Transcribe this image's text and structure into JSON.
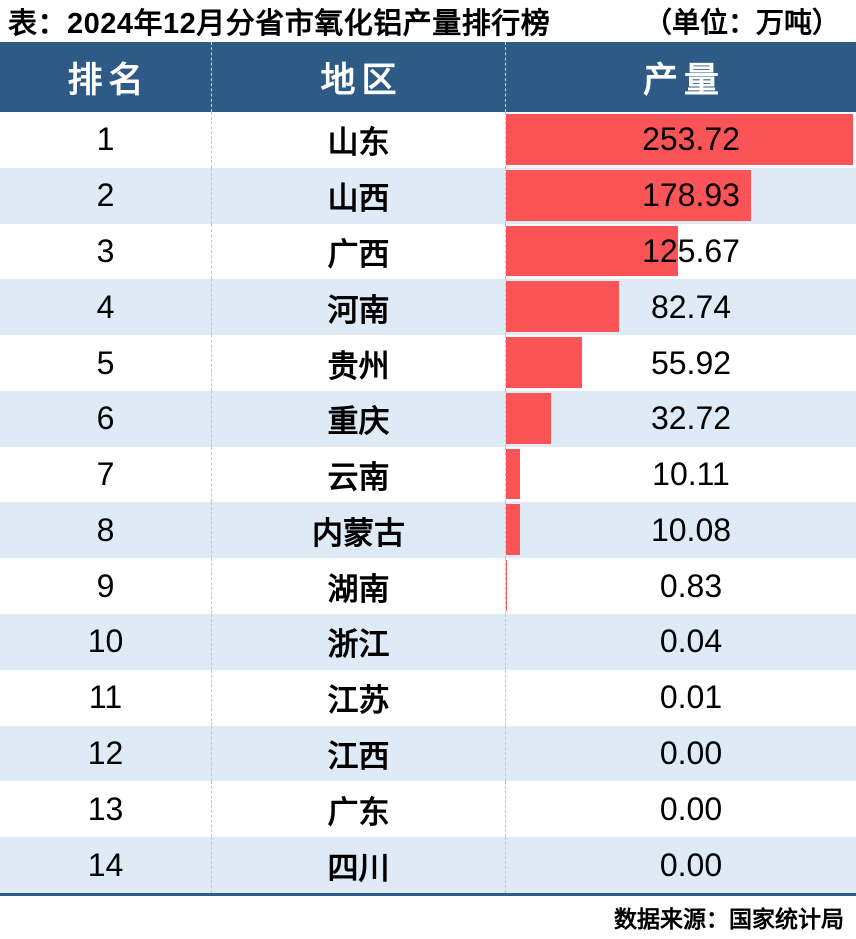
{
  "title": {
    "text": "表：2024年12月分省市氧化铝产量排行榜",
    "unit": "（单位：万吨）"
  },
  "table": {
    "columns": [
      "排名",
      "地区",
      "产量"
    ],
    "rows": [
      {
        "rank": "1",
        "region": "山东",
        "value": "253.72"
      },
      {
        "rank": "2",
        "region": "山西",
        "value": "178.93"
      },
      {
        "rank": "3",
        "region": "广西",
        "value": "125.67"
      },
      {
        "rank": "4",
        "region": "河南",
        "value": "82.74"
      },
      {
        "rank": "5",
        "region": "贵州",
        "value": "55.92"
      },
      {
        "rank": "6",
        "region": "重庆",
        "value": "32.72"
      },
      {
        "rank": "7",
        "region": "云南",
        "value": "10.11"
      },
      {
        "rank": "8",
        "region": "内蒙古",
        "value": "10.08"
      },
      {
        "rank": "9",
        "region": "湖南",
        "value": "0.83"
      },
      {
        "rank": "10",
        "region": "浙江",
        "value": "0.04"
      },
      {
        "rank": "11",
        "region": "江苏",
        "value": "0.01"
      },
      {
        "rank": "12",
        "region": "江西",
        "value": "0.00"
      },
      {
        "rank": "13",
        "region": "广东",
        "value": "0.00"
      },
      {
        "rank": "14",
        "region": "四川",
        "value": "0.00"
      }
    ]
  },
  "footer": {
    "source": "数据来源：国家统计局"
  },
  "colors": {
    "header_bg": "#2E5A86",
    "alt_row_bg": "#DEEBF7",
    "bar": "#FB5456",
    "bottom_border": "#2E5A86"
  },
  "chart_data": {
    "type": "bar",
    "orientation": "horizontal",
    "title": "2024年12月分省市氧化铝产量排行榜",
    "unit": "万吨",
    "categories": [
      "山东",
      "山西",
      "广西",
      "河南",
      "贵州",
      "重庆",
      "云南",
      "内蒙古",
      "湖南",
      "浙江",
      "江苏",
      "江西",
      "广东",
      "四川"
    ],
    "values": [
      253.72,
      178.93,
      125.67,
      82.74,
      55.92,
      32.72,
      10.11,
      10.08,
      0.83,
      0.04,
      0.01,
      0.0,
      0.0,
      0.0
    ],
    "xlim": [
      0,
      253.72
    ],
    "legend": "none",
    "grid": false,
    "source": "数据来源：国家统计局"
  }
}
